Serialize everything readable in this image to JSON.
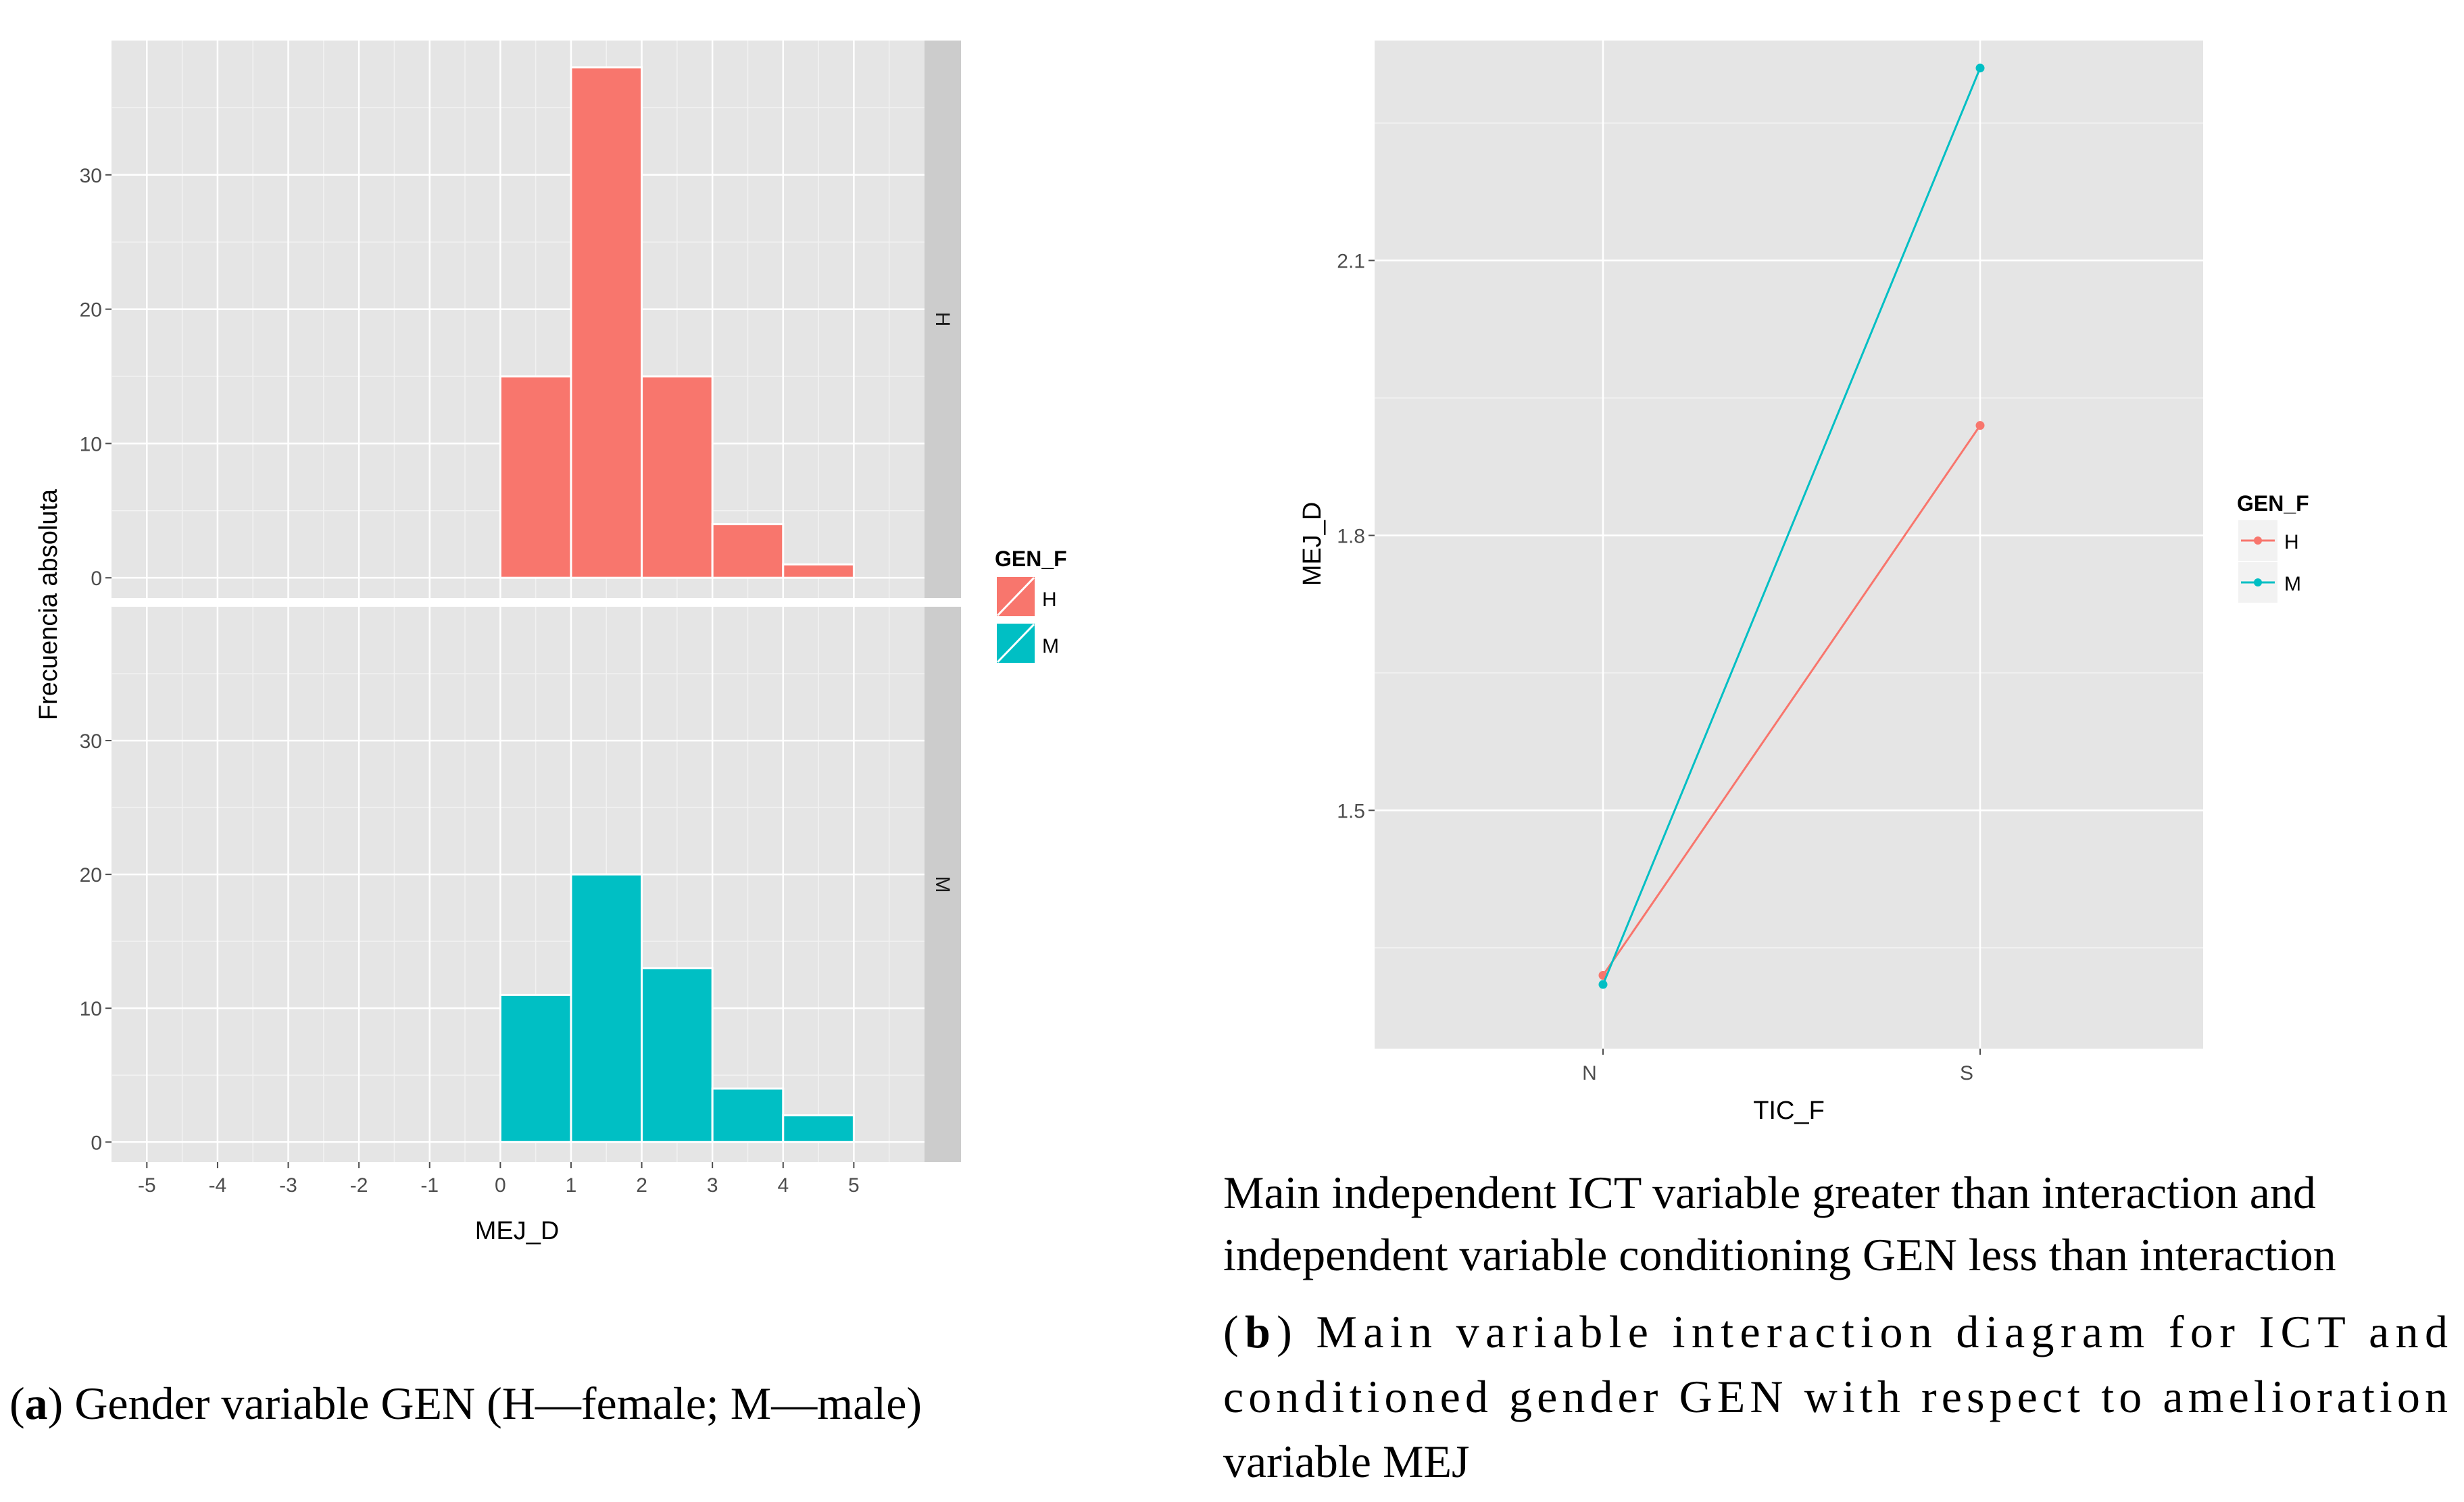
{
  "chart_data": [
    {
      "type": "bar",
      "subtype": "faceted-histogram",
      "xlabel": "MEJ_D",
      "ylabel": "Frecuencia absoluta",
      "xlim": [
        -5.5,
        6
      ],
      "ylim": [
        -1.5,
        40
      ],
      "x_ticks": [
        -5,
        -4,
        -3,
        -2,
        -1,
        0,
        1,
        2,
        3,
        4,
        5
      ],
      "x_tick_labels": [
        "-5",
        "-4",
        "-3",
        "-2",
        "-1",
        "0",
        "1",
        "2",
        "3",
        "4",
        "5"
      ],
      "y_ticks": [
        0,
        10,
        20,
        30
      ],
      "y_tick_labels": [
        "0",
        "10",
        "20",
        "30"
      ],
      "bin_width": 1,
      "bins": [
        0,
        1,
        2,
        3,
        4
      ],
      "facets": [
        {
          "label": "H",
          "color": "#f8766d",
          "values": [
            15,
            38,
            15,
            4,
            1
          ]
        },
        {
          "label": "M",
          "color": "#00bfc4",
          "values": [
            11,
            20,
            13,
            4,
            2
          ]
        }
      ],
      "legend": {
        "title": "GEN_F",
        "entries": [
          "H",
          "M"
        ],
        "placement": "right"
      },
      "caption": {
        "letter": "a",
        "text": " Gender variable GEN (H—female; M—male)"
      }
    },
    {
      "type": "line",
      "xlabel": "TIC_F",
      "ylabel": "MEJ_D",
      "categories": [
        "N",
        "S"
      ],
      "ylim": [
        1.24,
        2.34
      ],
      "y_ticks": [
        1.5,
        1.8,
        2.1
      ],
      "y_tick_labels": [
        "1.5",
        "1.8",
        "2.1"
      ],
      "series": [
        {
          "name": "H",
          "color": "#f8766d",
          "values": [
            1.32,
            1.92
          ]
        },
        {
          "name": "M",
          "color": "#00bfc4",
          "values": [
            1.31,
            2.31
          ]
        }
      ],
      "legend": {
        "title": "GEN_F",
        "entries": [
          "H",
          "M"
        ],
        "placement": "right"
      },
      "note": "Main independent ICT variable greater than interaction and independent variable conditioning GEN less than interaction",
      "caption": {
        "letter": "b",
        "text": " Main variable interaction diagram for ICT and conditioned gender GEN with respect to amelioration variable MEJ"
      }
    }
  ]
}
